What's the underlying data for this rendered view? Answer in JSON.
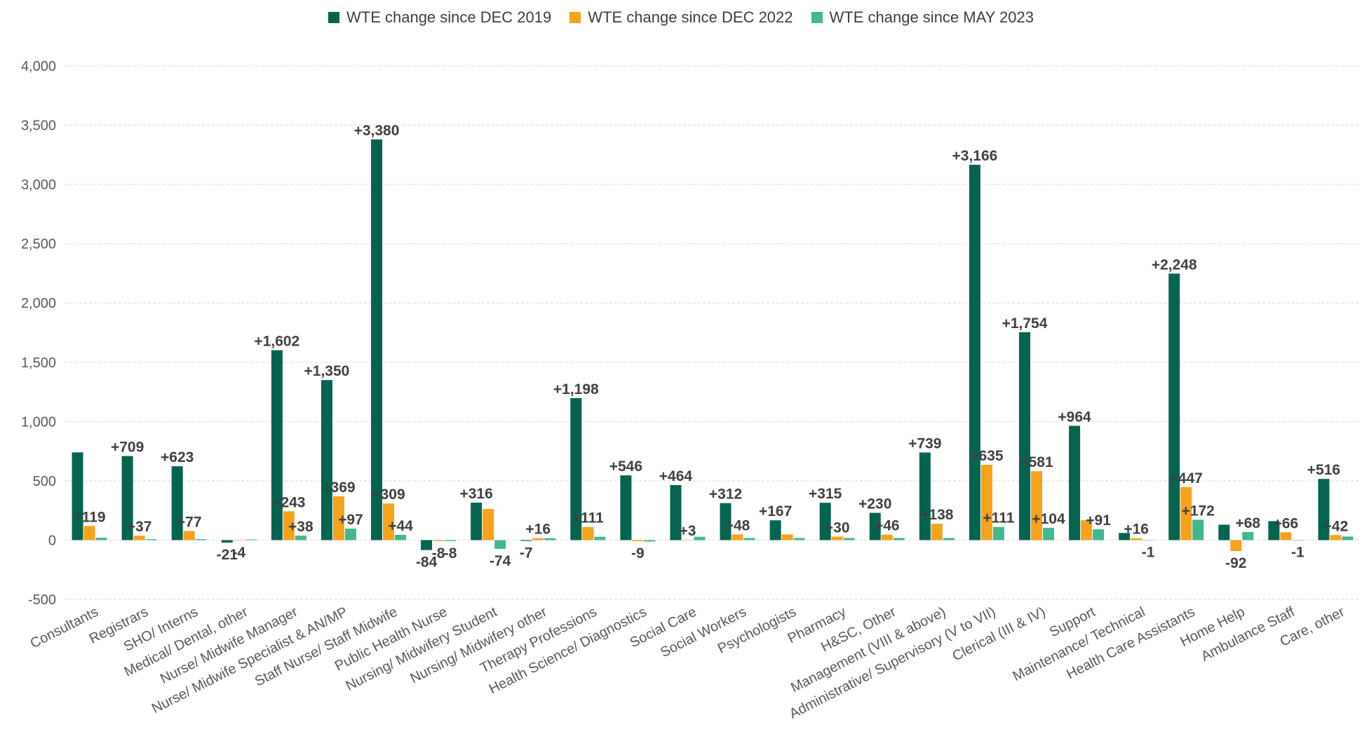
{
  "chart_data": {
    "type": "bar",
    "categories": [
      "Consultants",
      "Registrars",
      "SHO/ Interns",
      "Medical/ Dental, other",
      "Nurse/ Midwife Manager",
      "Nurse/ Midwife Specialist & AN/MP",
      "Staff Nurse/ Staff Midwife",
      "Public Health Nurse",
      "Nursing/ Midwifery Student",
      "Nursing/ Midwifery other",
      "Therapy Professions",
      "Health Science/ Diagnostics",
      "Social Care",
      "Social Workers",
      "Psychologists",
      "Pharmacy",
      "H&SC, Other",
      "Management (VIII & above)",
      "Administrative/ Supervisory (V to VII)",
      "Clerical (III & IV)",
      "Support",
      "Maintenance/ Technical",
      "Health Care Assistants",
      "Home Help",
      "Ambulance Staff",
      "Care, other"
    ],
    "series": [
      {
        "name": "WTE change since DEC 2019",
        "color": "#04644f",
        "values": [
          740,
          709,
          623,
          -21,
          1602,
          1350,
          3380,
          -84,
          316,
          -7,
          1198,
          546,
          464,
          312,
          167,
          315,
          230,
          739,
          3166,
          1754,
          964,
          60,
          2248,
          130,
          160,
          516
        ],
        "labels": [
          "",
          "+709",
          "+623",
          "-21",
          "+1,602",
          "+1,350",
          "+3,380",
          "-84",
          "+316",
          "-7",
          "+1,198",
          "+546",
          "+464",
          "+312",
          "+167",
          "+315",
          "+230",
          "+739",
          "+3,166",
          "+1,754",
          "+964",
          "",
          "+2,248",
          "",
          "",
          "+516"
        ]
      },
      {
        "name": "WTE change since DEC 2022",
        "color": "#f7a21b",
        "values": [
          119,
          37,
          77,
          -4,
          243,
          369,
          309,
          -8,
          263,
          16,
          111,
          -9,
          3,
          48,
          48,
          30,
          46,
          138,
          635,
          581,
          168,
          16,
          447,
          -92,
          66,
          42
        ],
        "labels": [
          "+119",
          "+37",
          "+77",
          "-4",
          "+243",
          "+369",
          "+309",
          "-8",
          "",
          "+16",
          "+111",
          "-9",
          "+3",
          "+48",
          "",
          "+30",
          "+46",
          "+138",
          "+635",
          "+581",
          "",
          "+16",
          "+447",
          "-92",
          "+66",
          "+42"
        ]
      },
      {
        "name": "WTE change since MAY 2023",
        "color": "#41b88e",
        "values": [
          20,
          8,
          8,
          5,
          38,
          97,
          44,
          -8,
          -74,
          16,
          28,
          -12,
          28,
          18,
          18,
          18,
          18,
          18,
          111,
          104,
          91,
          -1,
          172,
          68,
          -1,
          30
        ],
        "labels": [
          "",
          "",
          "",
          "",
          "+38",
          "+97",
          "+44",
          "-8",
          "-74",
          "",
          "",
          "",
          "",
          "",
          "",
          "",
          "",
          "",
          "+111",
          "+104",
          "+91",
          "-1",
          "+172",
          "+68",
          "-1",
          ""
        ]
      }
    ],
    "title": "",
    "xlabel": "",
    "ylabel": "",
    "ylim": [
      -500,
      4000
    ],
    "yticks": [
      -500,
      0,
      500,
      1000,
      1500,
      2000,
      2500,
      3000,
      3500,
      4000
    ],
    "ytick_labels": [
      "-500",
      "0",
      "500",
      "1,000",
      "1,500",
      "2,000",
      "2,500",
      "3,000",
      "3,500",
      "4,000"
    ],
    "grid": true,
    "legend_position": "top"
  }
}
